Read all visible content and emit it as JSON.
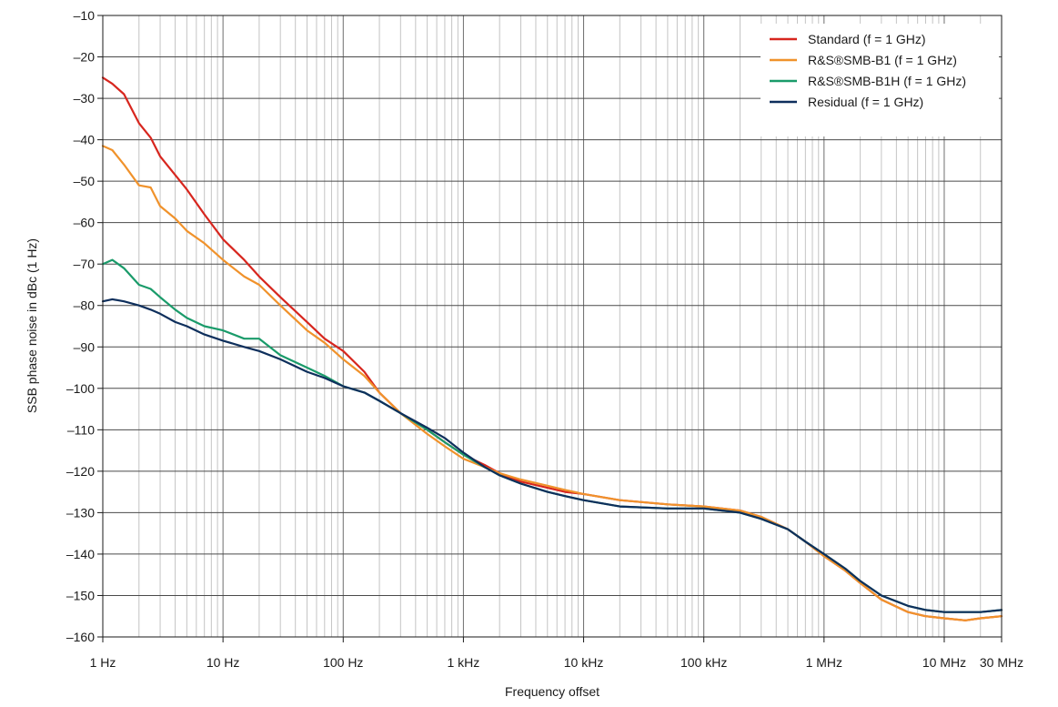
{
  "chart_data": {
    "type": "line",
    "title": "",
    "xlabel": "Frequency offset",
    "ylabel": "SSB phase noise in dBc (1 Hz)",
    "x_scale": "log",
    "x_unit": "Hz",
    "xlim": [
      1,
      30000000
    ],
    "ylim": [
      -160,
      -10
    ],
    "grid": true,
    "legend_position": "top-right",
    "x_ticks": [
      {
        "value": 1,
        "label": "1 Hz"
      },
      {
        "value": 10,
        "label": "10 Hz"
      },
      {
        "value": 100,
        "label": "100 Hz"
      },
      {
        "value": 1000,
        "label": "1 kHz"
      },
      {
        "value": 10000,
        "label": "10 kHz"
      },
      {
        "value": 100000,
        "label": "100 kHz"
      },
      {
        "value": 1000000,
        "label": "1 MHz"
      },
      {
        "value": 10000000,
        "label": "10 MHz"
      },
      {
        "value": 30000000,
        "label": "30 MHz"
      }
    ],
    "y_ticks": [
      {
        "value": -10,
        "label": "–10"
      },
      {
        "value": -20,
        "label": "–20"
      },
      {
        "value": -30,
        "label": "–30"
      },
      {
        "value": -40,
        "label": "–40"
      },
      {
        "value": -50,
        "label": "–50"
      },
      {
        "value": -60,
        "label": "–60"
      },
      {
        "value": -70,
        "label": "–70"
      },
      {
        "value": -80,
        "label": "–80"
      },
      {
        "value": -90,
        "label": "–90"
      },
      {
        "value": -100,
        "label": "–100"
      },
      {
        "value": -110,
        "label": "–110"
      },
      {
        "value": -120,
        "label": "–120"
      },
      {
        "value": -130,
        "label": "–130"
      },
      {
        "value": -140,
        "label": "–140"
      },
      {
        "value": -150,
        "label": "–150"
      },
      {
        "value": -160,
        "label": "–160"
      }
    ],
    "series": [
      {
        "name": "Standard (f = 1 GHz)",
        "color": "#d7261e",
        "points": [
          [
            1,
            -25
          ],
          [
            1.2,
            -26.5
          ],
          [
            1.5,
            -29
          ],
          [
            2,
            -36
          ],
          [
            2.5,
            -39.5
          ],
          [
            3,
            -44
          ],
          [
            4,
            -48.5
          ],
          [
            5,
            -52
          ],
          [
            7,
            -58
          ],
          [
            10,
            -64
          ],
          [
            15,
            -69
          ],
          [
            20,
            -73
          ],
          [
            30,
            -78
          ],
          [
            50,
            -84
          ],
          [
            70,
            -88
          ],
          [
            100,
            -91
          ],
          [
            150,
            -96
          ],
          [
            200,
            -101
          ],
          [
            300,
            -106
          ],
          [
            500,
            -110
          ],
          [
            700,
            -113
          ],
          [
            1000,
            -116
          ],
          [
            1500,
            -118.5
          ],
          [
            2000,
            -120.5
          ],
          [
            3000,
            -122.5
          ],
          [
            5000,
            -124
          ],
          [
            7000,
            -125
          ],
          [
            10000,
            -125.5
          ],
          [
            20000,
            -127
          ],
          [
            50000,
            -128
          ],
          [
            100000,
            -128.5
          ],
          [
            200000,
            -129.5
          ],
          [
            300000,
            -131
          ],
          [
            500000,
            -134
          ],
          [
            700000,
            -137
          ],
          [
            1000000,
            -140.5
          ],
          [
            1500000,
            -144
          ],
          [
            2000000,
            -147
          ],
          [
            3000000,
            -151
          ],
          [
            5000000,
            -154
          ],
          [
            7000000,
            -155
          ],
          [
            10000000,
            -155.5
          ],
          [
            15000000,
            -156
          ],
          [
            20000000,
            -155.5
          ],
          [
            30000000,
            -155
          ]
        ]
      },
      {
        "name": "R&S®SMB-B1 (f = 1 GHz)",
        "color": "#f0922b",
        "points": [
          [
            1,
            -41.5
          ],
          [
            1.2,
            -42.5
          ],
          [
            1.5,
            -46
          ],
          [
            2,
            -51
          ],
          [
            2.5,
            -51.5
          ],
          [
            3,
            -56
          ],
          [
            4,
            -59
          ],
          [
            5,
            -62
          ],
          [
            7,
            -65
          ],
          [
            10,
            -69
          ],
          [
            15,
            -73
          ],
          [
            20,
            -75
          ],
          [
            30,
            -80
          ],
          [
            50,
            -86
          ],
          [
            70,
            -89
          ],
          [
            100,
            -93
          ],
          [
            150,
            -97
          ],
          [
            200,
            -101
          ],
          [
            300,
            -106
          ],
          [
            500,
            -111
          ],
          [
            700,
            -114
          ],
          [
            1000,
            -117
          ],
          [
            1500,
            -119
          ],
          [
            2000,
            -120.5
          ],
          [
            3000,
            -122
          ],
          [
            5000,
            -123.5
          ],
          [
            7000,
            -124.5
          ],
          [
            10000,
            -125.5
          ],
          [
            20000,
            -127
          ],
          [
            50000,
            -128
          ],
          [
            100000,
            -128.5
          ],
          [
            200000,
            -129.5
          ],
          [
            300000,
            -131
          ],
          [
            500000,
            -134
          ],
          [
            700000,
            -137
          ],
          [
            1000000,
            -140.5
          ],
          [
            1500000,
            -144
          ],
          [
            2000000,
            -147
          ],
          [
            3000000,
            -151
          ],
          [
            5000000,
            -154
          ],
          [
            7000000,
            -155
          ],
          [
            10000000,
            -155.5
          ],
          [
            15000000,
            -156
          ],
          [
            20000000,
            -155.5
          ],
          [
            30000000,
            -155
          ]
        ]
      },
      {
        "name": "R&S®SMB-B1H (f = 1 GHz)",
        "color": "#1a9b6a",
        "points": [
          [
            1,
            -70
          ],
          [
            1.2,
            -69
          ],
          [
            1.5,
            -71
          ],
          [
            2,
            -75
          ],
          [
            2.5,
            -76
          ],
          [
            3,
            -78
          ],
          [
            4,
            -81
          ],
          [
            5,
            -83
          ],
          [
            7,
            -85
          ],
          [
            10,
            -86
          ],
          [
            15,
            -88
          ],
          [
            20,
            -88
          ],
          [
            30,
            -92
          ],
          [
            50,
            -95
          ],
          [
            70,
            -97
          ],
          [
            100,
            -99.5
          ],
          [
            150,
            -101
          ],
          [
            200,
            -103
          ],
          [
            300,
            -106
          ],
          [
            500,
            -110
          ],
          [
            700,
            -113
          ],
          [
            1000,
            -116
          ],
          [
            1500,
            -119
          ],
          [
            2000,
            -121
          ],
          [
            3000,
            -123
          ],
          [
            5000,
            -125
          ],
          [
            7000,
            -126
          ],
          [
            10000,
            -127
          ],
          [
            20000,
            -128.5
          ],
          [
            50000,
            -129
          ],
          [
            100000,
            -129
          ],
          [
            200000,
            -130
          ],
          [
            300000,
            -131.5
          ],
          [
            500000,
            -134
          ],
          [
            700000,
            -137
          ],
          [
            1000000,
            -140
          ],
          [
            1500000,
            -143.5
          ],
          [
            2000000,
            -146.5
          ],
          [
            3000000,
            -150
          ],
          [
            5000000,
            -152.5
          ],
          [
            7000000,
            -153.5
          ],
          [
            10000000,
            -154
          ],
          [
            15000000,
            -154
          ],
          [
            20000000,
            -154
          ],
          [
            30000000,
            -153.5
          ]
        ]
      },
      {
        "name": "Residual (f = 1 GHz)",
        "color": "#0e2f5c",
        "points": [
          [
            1,
            -79
          ],
          [
            1.2,
            -78.5
          ],
          [
            1.5,
            -79
          ],
          [
            2,
            -80
          ],
          [
            2.5,
            -81
          ],
          [
            3,
            -82
          ],
          [
            4,
            -84
          ],
          [
            5,
            -85
          ],
          [
            7,
            -87
          ],
          [
            10,
            -88.5
          ],
          [
            15,
            -90
          ],
          [
            20,
            -91
          ],
          [
            30,
            -93
          ],
          [
            50,
            -96
          ],
          [
            70,
            -97.5
          ],
          [
            100,
            -99.5
          ],
          [
            150,
            -101
          ],
          [
            200,
            -103
          ],
          [
            300,
            -106
          ],
          [
            500,
            -109.5
          ],
          [
            700,
            -112
          ],
          [
            1000,
            -115.5
          ],
          [
            1500,
            -119
          ],
          [
            2000,
            -121
          ],
          [
            3000,
            -123
          ],
          [
            5000,
            -125
          ],
          [
            7000,
            -126
          ],
          [
            10000,
            -127
          ],
          [
            20000,
            -128.5
          ],
          [
            50000,
            -129
          ],
          [
            100000,
            -129
          ],
          [
            200000,
            -130
          ],
          [
            300000,
            -131.5
          ],
          [
            500000,
            -134
          ],
          [
            700000,
            -137
          ],
          [
            1000000,
            -140
          ],
          [
            1500000,
            -143.5
          ],
          [
            2000000,
            -146.5
          ],
          [
            3000000,
            -150
          ],
          [
            5000000,
            -152.5
          ],
          [
            7000000,
            -153.5
          ],
          [
            10000000,
            -154
          ],
          [
            15000000,
            -154
          ],
          [
            20000000,
            -154
          ],
          [
            30000000,
            -153.5
          ]
        ]
      }
    ]
  }
}
